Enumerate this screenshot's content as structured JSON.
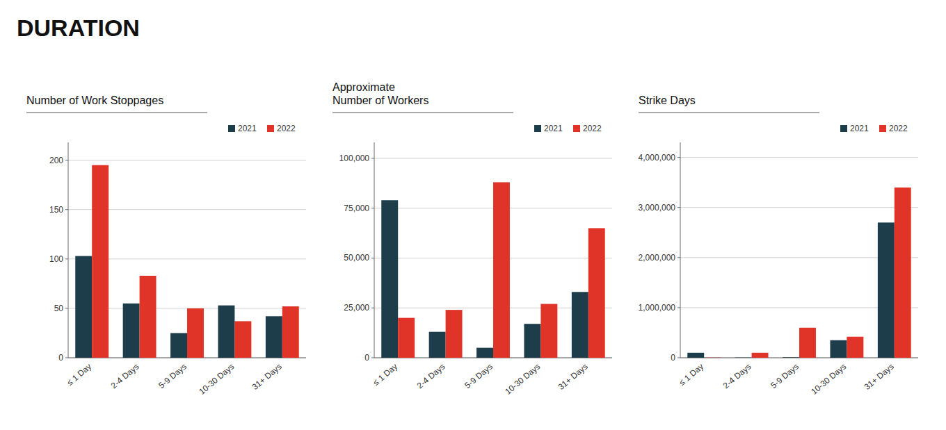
{
  "title": "DURATION",
  "chart_data": [
    {
      "type": "bar",
      "title": "Number of Work Stoppages",
      "categories": [
        "≤ 1 Day",
        "2-4 Days",
        "5-9 Days",
        "10-30 Days",
        "31+ Days"
      ],
      "series": [
        {
          "name": "2021",
          "color": "#1d3d4a",
          "values": [
            103,
            55,
            25,
            53,
            42
          ]
        },
        {
          "name": "2022",
          "color": "#e03428",
          "values": [
            195,
            83,
            50,
            37,
            52
          ]
        }
      ],
      "ylim": [
        0,
        218
      ],
      "yticks": [
        0,
        50,
        100,
        150,
        200
      ],
      "grid": true,
      "legend": "upper right"
    },
    {
      "type": "bar",
      "title": "Approximate\nNumber of Workers",
      "categories": [
        "≤ 1 Day",
        "2-4 Days",
        "5-9 Days",
        "10-30 Days",
        "31+ Days"
      ],
      "series": [
        {
          "name": "2021",
          "color": "#1d3d4a",
          "values": [
            79000,
            13000,
            5000,
            17000,
            33000
          ]
        },
        {
          "name": "2022",
          "color": "#e03428",
          "values": [
            20000,
            24000,
            88000,
            27000,
            65000
          ]
        }
      ],
      "ylim": [
        0,
        108000
      ],
      "yticks": [
        0,
        {
          "value": 25000,
          "label": "25,000"
        },
        {
          "value": 50000,
          "label": "50,000"
        },
        {
          "value": 75000,
          "label": "75,000"
        },
        {
          "value": 100000,
          "label": "100,000"
        }
      ],
      "grid": true,
      "legend": "upper right"
    },
    {
      "type": "bar",
      "title": "Strike Days",
      "categories": [
        "≤ 1 Day",
        "2-4 Days",
        "5-9 Days",
        "10-30 Days",
        "31+ Days"
      ],
      "series": [
        {
          "name": "2021",
          "color": "#1d3d4a",
          "values": [
            100000,
            5000,
            10000,
            350000,
            2700000
          ]
        },
        {
          "name": "2022",
          "color": "#e03428",
          "values": [
            5000,
            100000,
            600000,
            420000,
            3400000
          ]
        }
      ],
      "ylim": [
        0,
        4300000
      ],
      "yticks": [
        0,
        {
          "value": 1000000,
          "label": "1,000,000"
        },
        {
          "value": 2000000,
          "label": "2,000,000"
        },
        {
          "value": 3000000,
          "label": "3,000,000"
        },
        {
          "value": 4000000,
          "label": "4,000,000"
        }
      ],
      "grid": true,
      "legend": "upper right"
    }
  ]
}
